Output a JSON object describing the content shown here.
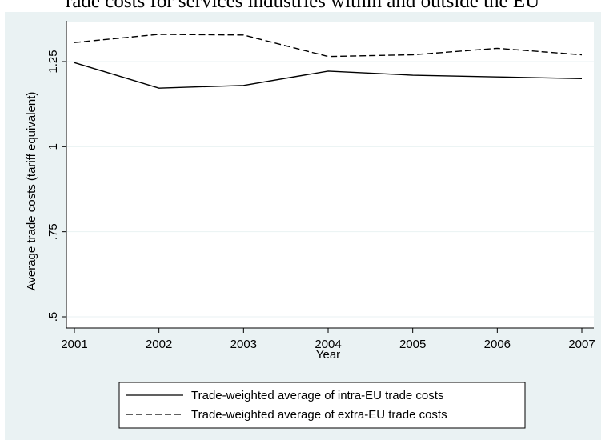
{
  "caption": "rade costs for services industries within and outside the EU",
  "chart_data": {
    "type": "line",
    "x": [
      2001,
      2002,
      2003,
      2004,
      2005,
      2006,
      2007
    ],
    "xlabel": "Year",
    "ylabel": "Average trade costs (tariff equivalent)",
    "xlim": [
      2001,
      2007
    ],
    "ylim": [
      0.5,
      1.25
    ],
    "xticks": [
      "2001",
      "2002",
      "2003",
      "2004",
      "2005",
      "2006",
      "2007"
    ],
    "yticks": [
      {
        "value": 0.5,
        "label": ".5"
      },
      {
        "value": 0.75,
        "label": ".75"
      },
      {
        "value": 1.0,
        "label": "1"
      },
      {
        "value": 1.25,
        "label": "1.25"
      }
    ],
    "grid": true,
    "legend_position": "bottom",
    "series": [
      {
        "name": "Trade-weighted average of intra-EU trade costs",
        "style": "solid",
        "values": [
          1.247,
          1.172,
          1.18,
          1.222,
          1.21,
          1.205,
          1.2
        ]
      },
      {
        "name": "Trade-weighted average of extra-EU trade costs",
        "style": "dashed",
        "values": [
          1.306,
          1.33,
          1.328,
          1.265,
          1.27,
          1.289,
          1.27
        ]
      }
    ]
  },
  "colors": {
    "background": "#eaf2f3",
    "plot_area": "#ffffff",
    "gridline": "#eaf2f3",
    "line": "#000000"
  }
}
